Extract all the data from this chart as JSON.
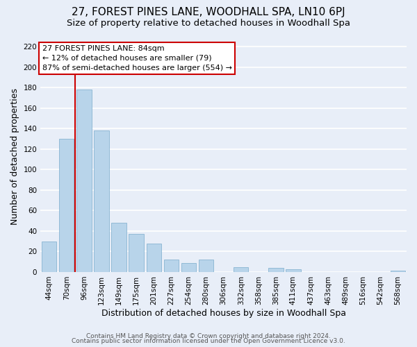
{
  "title": "27, FOREST PINES LANE, WOODHALL SPA, LN10 6PJ",
  "subtitle": "Size of property relative to detached houses in Woodhall Spa",
  "xlabel": "Distribution of detached houses by size in Woodhall Spa",
  "ylabel": "Number of detached properties",
  "categories": [
    "44sqm",
    "70sqm",
    "96sqm",
    "123sqm",
    "149sqm",
    "175sqm",
    "201sqm",
    "227sqm",
    "254sqm",
    "280sqm",
    "306sqm",
    "332sqm",
    "358sqm",
    "385sqm",
    "411sqm",
    "437sqm",
    "463sqm",
    "489sqm",
    "516sqm",
    "542sqm",
    "568sqm"
  ],
  "values": [
    30,
    130,
    178,
    138,
    48,
    37,
    28,
    12,
    9,
    12,
    0,
    5,
    0,
    4,
    3,
    0,
    0,
    0,
    0,
    0,
    1
  ],
  "bar_color": "#b8d4ea",
  "vline_x": 1.5,
  "vline_color": "#cc0000",
  "ylim": [
    0,
    225
  ],
  "yticks": [
    0,
    20,
    40,
    60,
    80,
    100,
    120,
    140,
    160,
    180,
    200,
    220
  ],
  "annotation_title": "27 FOREST PINES LANE: 84sqm",
  "annotation_line1": "← 12% of detached houses are smaller (79)",
  "annotation_line2": "87% of semi-detached houses are larger (554) →",
  "footer_line1": "Contains HM Land Registry data © Crown copyright and database right 2024.",
  "footer_line2": "Contains public sector information licensed under the Open Government Licence v3.0.",
  "bg_color": "#e8eef8",
  "plot_bg_color": "#e8eef8",
  "grid_color": "#ffffff",
  "title_fontsize": 11,
  "subtitle_fontsize": 9.5,
  "axis_label_fontsize": 9,
  "tick_fontsize": 7.5,
  "footer_fontsize": 6.5,
  "annot_fontsize": 8.0
}
